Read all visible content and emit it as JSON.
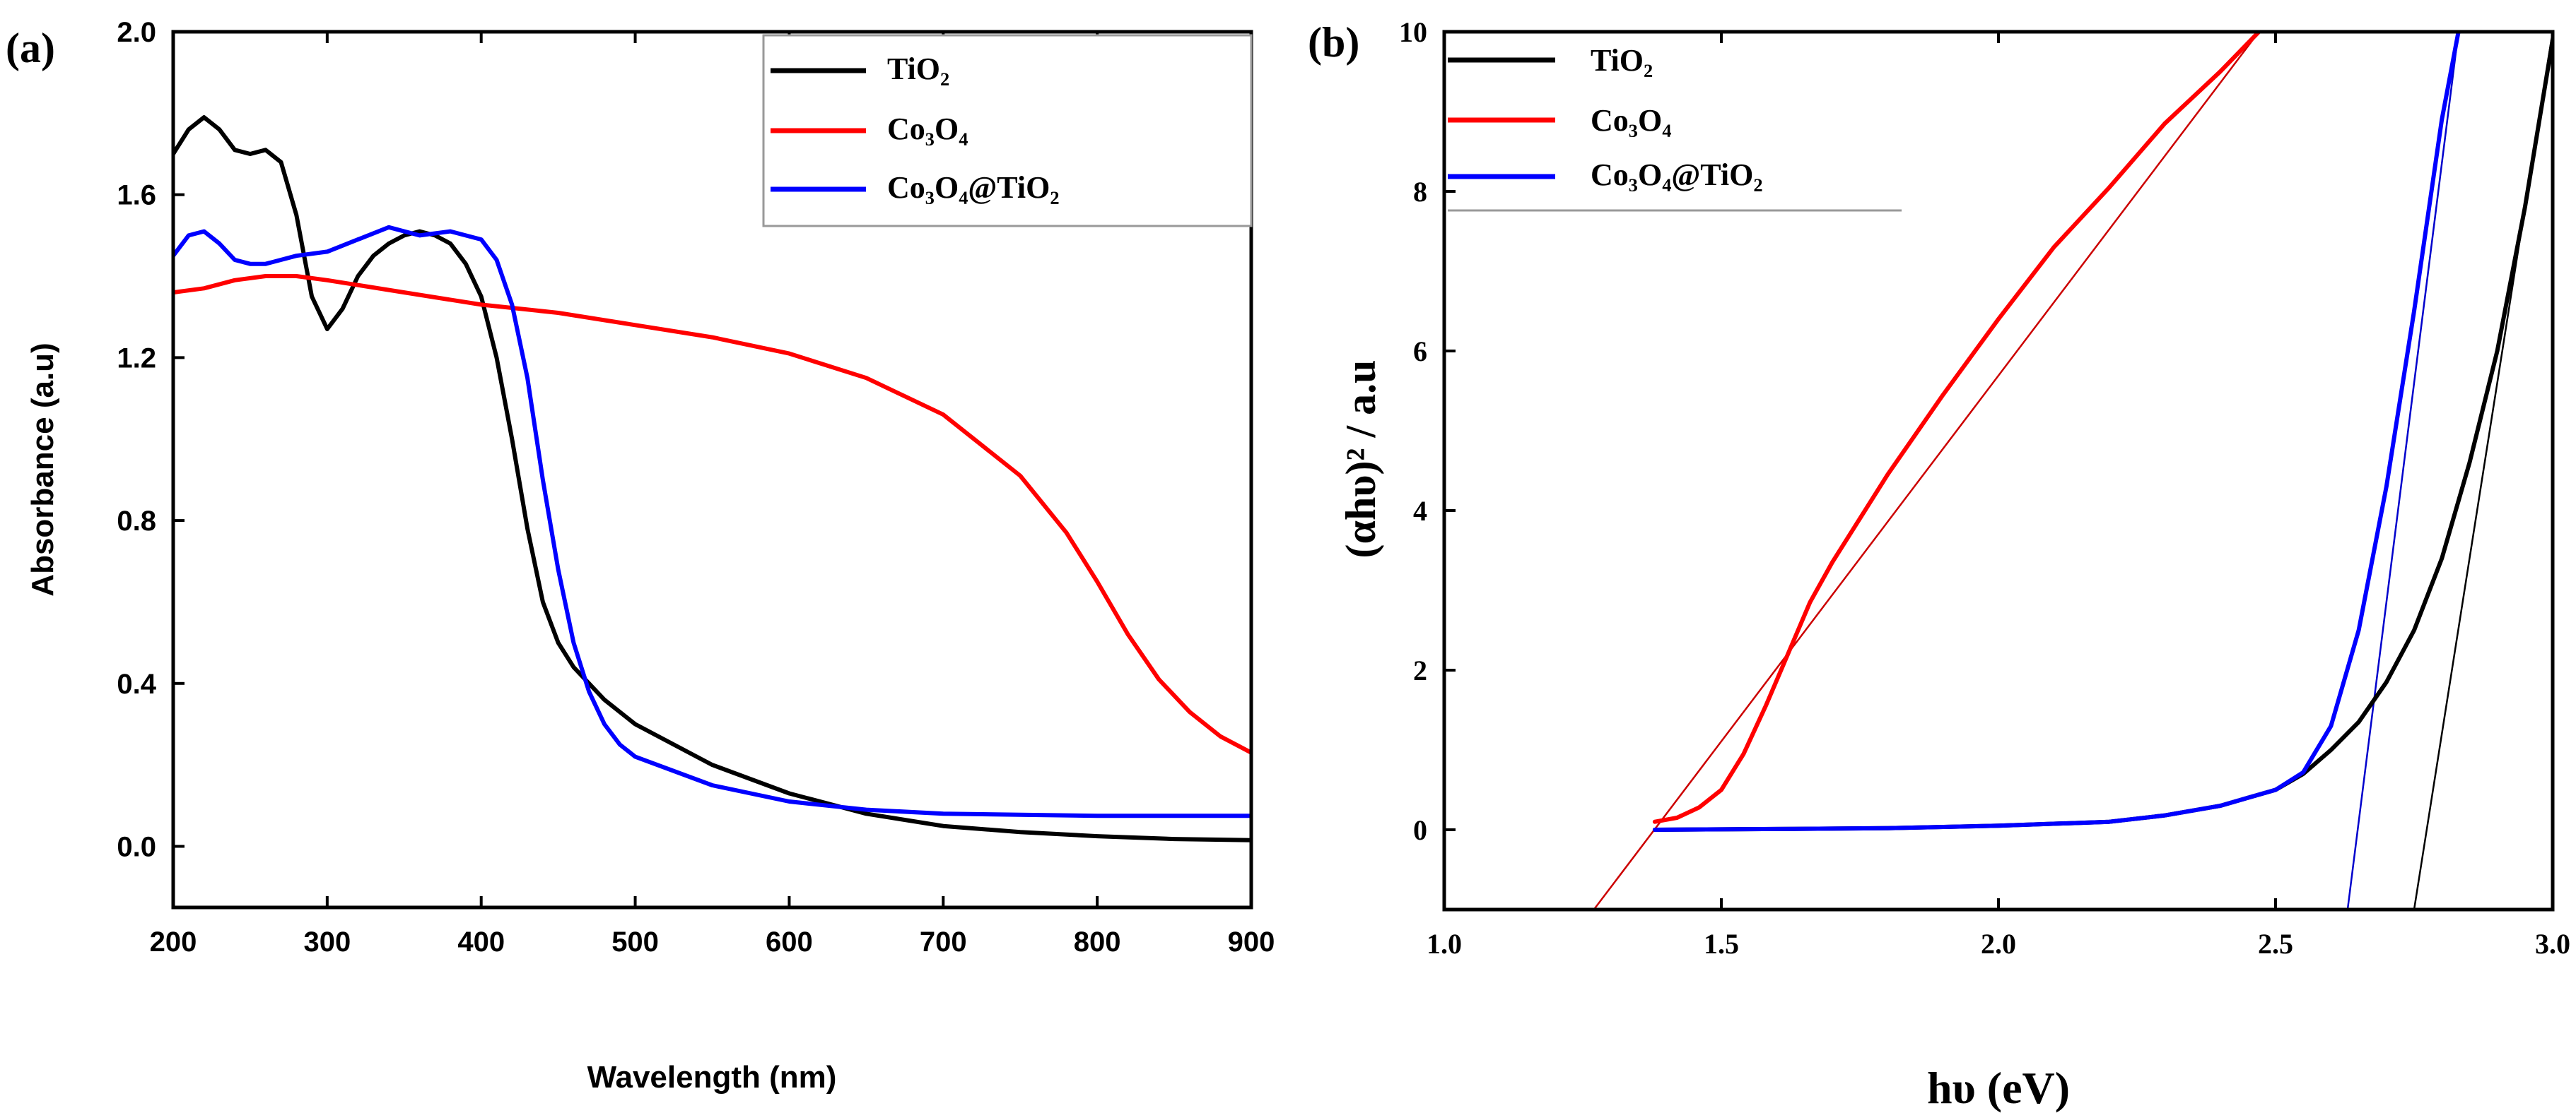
{
  "chart_data": [
    {
      "panel_label": "(a)",
      "type": "line",
      "xlabel": "Wavelength (nm)",
      "ylabel": "Absorbance (a.u)",
      "xlim": [
        200,
        900
      ],
      "ylim": [
        -0.15,
        2.0
      ],
      "xticks": [
        200,
        300,
        400,
        500,
        600,
        700,
        800,
        900
      ],
      "xtick_labels": [
        "200",
        "300",
        "400",
        "500",
        "600",
        "700",
        "800",
        "900"
      ],
      "yticks": [
        0.0,
        0.4,
        0.8,
        1.2,
        1.6,
        2.0
      ],
      "ytick_labels": [
        "0.0",
        "0.4",
        "0.8",
        "1.2",
        "1.6",
        "2.0"
      ],
      "legend_position": "top-right",
      "series": [
        {
          "name": "TiO₂",
          "color": "#000000",
          "x": [
            200,
            210,
            220,
            230,
            240,
            250,
            260,
            270,
            280,
            290,
            300,
            310,
            320,
            330,
            340,
            350,
            360,
            370,
            380,
            390,
            400,
            410,
            420,
            430,
            440,
            450,
            460,
            480,
            500,
            550,
            600,
            650,
            700,
            750,
            800,
            850,
            900
          ],
          "y": [
            1.7,
            1.76,
            1.79,
            1.76,
            1.71,
            1.7,
            1.71,
            1.68,
            1.55,
            1.35,
            1.27,
            1.32,
            1.4,
            1.45,
            1.48,
            1.5,
            1.51,
            1.5,
            1.48,
            1.43,
            1.35,
            1.2,
            1.0,
            0.78,
            0.6,
            0.5,
            0.44,
            0.36,
            0.3,
            0.2,
            0.13,
            0.08,
            0.05,
            0.035,
            0.025,
            0.018,
            0.015
          ]
        },
        {
          "name": "Co₃O₄",
          "color": "#ff0000",
          "x": [
            200,
            220,
            240,
            260,
            280,
            300,
            350,
            400,
            450,
            500,
            550,
            600,
            650,
            700,
            750,
            780,
            800,
            820,
            840,
            860,
            880,
            900
          ],
          "y": [
            1.36,
            1.37,
            1.39,
            1.4,
            1.4,
            1.39,
            1.36,
            1.33,
            1.31,
            1.28,
            1.25,
            1.21,
            1.15,
            1.06,
            0.91,
            0.77,
            0.65,
            0.52,
            0.41,
            0.33,
            0.27,
            0.23
          ]
        },
        {
          "name": "Co₃O₄@TiO₂",
          "color": "#0000ff",
          "x": [
            200,
            210,
            220,
            230,
            240,
            250,
            260,
            280,
            300,
            320,
            340,
            360,
            380,
            400,
            410,
            420,
            430,
            440,
            450,
            460,
            470,
            480,
            490,
            500,
            550,
            600,
            650,
            700,
            800,
            900
          ],
          "y": [
            1.45,
            1.5,
            1.51,
            1.48,
            1.44,
            1.43,
            1.43,
            1.45,
            1.46,
            1.49,
            1.52,
            1.5,
            1.51,
            1.49,
            1.44,
            1.33,
            1.15,
            0.9,
            0.68,
            0.5,
            0.38,
            0.3,
            0.25,
            0.22,
            0.15,
            0.11,
            0.09,
            0.08,
            0.075,
            0.075
          ]
        }
      ]
    },
    {
      "panel_label": "(b)",
      "type": "line",
      "xlabel": "hυ (eV)",
      "ylabel": "(αhυ)² / a.u",
      "xlim": [
        1.0,
        3.0
      ],
      "ylim": [
        -1,
        10
      ],
      "xticks": [
        1.0,
        1.5,
        2.0,
        2.5,
        3.0
      ],
      "xtick_labels": [
        "1.0",
        "1.5",
        "2.0",
        "2.5",
        "3.0"
      ],
      "yticks": [
        0,
        2,
        4,
        6,
        8,
        10
      ],
      "ytick_labels": [
        "0",
        "2",
        "4",
        "6",
        "8",
        "10"
      ],
      "legend_position": "top-left",
      "series": [
        {
          "name": "TiO₂",
          "color": "#000000",
          "x": [
            1.38,
            1.6,
            1.8,
            2.0,
            2.2,
            2.3,
            2.4,
            2.5,
            2.55,
            2.6,
            2.65,
            2.7,
            2.75,
            2.8,
            2.85,
            2.9,
            2.95,
            3.0
          ],
          "y": [
            0.0,
            0.01,
            0.02,
            0.05,
            0.1,
            0.18,
            0.3,
            0.5,
            0.7,
            1.0,
            1.35,
            1.85,
            2.5,
            3.4,
            4.6,
            6.0,
            7.8,
            9.9
          ]
        },
        {
          "name": "Co₃O₄",
          "color": "#ff0000",
          "x": [
            1.38,
            1.42,
            1.46,
            1.5,
            1.54,
            1.58,
            1.62,
            1.66,
            1.7,
            1.8,
            1.9,
            2.0,
            2.1,
            2.2,
            2.3,
            2.4,
            2.47
          ],
          "y": [
            0.1,
            0.15,
            0.28,
            0.5,
            0.95,
            1.55,
            2.2,
            2.85,
            3.35,
            4.45,
            5.45,
            6.4,
            7.3,
            8.05,
            8.85,
            9.5,
            10.0
          ]
        },
        {
          "name": "Co₃O₄@TiO₂",
          "color": "#0000ff",
          "x": [
            1.38,
            1.6,
            1.8,
            2.0,
            2.2,
            2.3,
            2.4,
            2.5,
            2.55,
            2.6,
            2.65,
            2.7,
            2.75,
            2.8,
            2.83
          ],
          "y": [
            0.0,
            0.01,
            0.02,
            0.05,
            0.1,
            0.18,
            0.3,
            0.5,
            0.72,
            1.3,
            2.5,
            4.3,
            6.5,
            8.9,
            10.0
          ]
        }
      ],
      "fit_lines": [
        {
          "name": "Co₃O₄ tangent",
          "color": "#cc0000",
          "x": [
            1.27,
            2.47
          ],
          "y": [
            -1.0,
            10.0
          ]
        },
        {
          "name": "Co₃O₄@TiO₂ tangent",
          "color": "#0000cc",
          "x": [
            2.63,
            2.83
          ],
          "y": [
            -1.0,
            10.0
          ]
        },
        {
          "name": "TiO₂ tangent",
          "color": "#000000",
          "x": [
            2.75,
            3.0
          ],
          "y": [
            -1.0,
            10.0
          ]
        }
      ]
    }
  ]
}
